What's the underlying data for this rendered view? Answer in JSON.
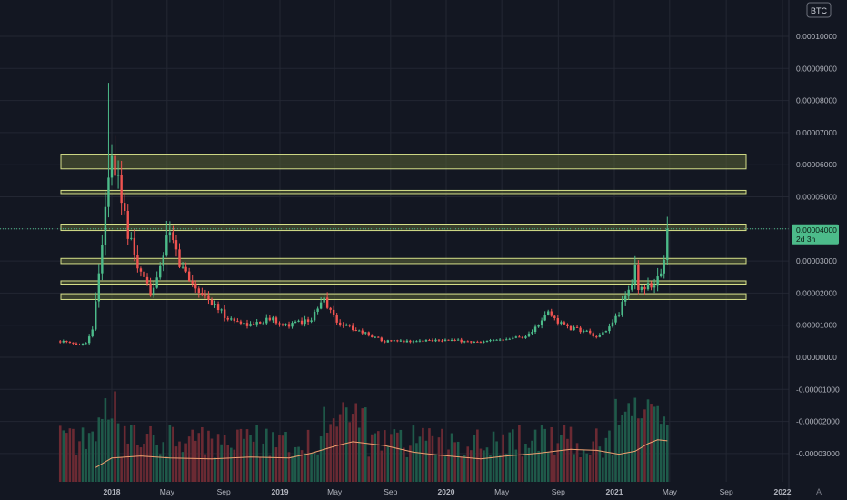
{
  "currency_badge": "BTC",
  "corner_glyph": "A",
  "colors": {
    "background": "#131722",
    "grid": "#232733",
    "axis_text": "#b2b5be",
    "up": "#26a69a",
    "up_body": "#4cbb8a",
    "down": "#ef5350",
    "vol_up": "#1f5a4a",
    "vol_down": "#6b2a33",
    "zone_stroke": "#d6e08a",
    "zone_fill": "#5a6234",
    "ma_line": "#f0a070",
    "price_label": "#4cbb8a"
  },
  "price_tag": {
    "value": "0.00004000",
    "countdown": "2d 3h"
  },
  "chart_data": {
    "type": "candlestick",
    "title": "",
    "x_ticks": [
      "2018",
      "May",
      "Sep",
      "2019",
      "May",
      "Sep",
      "2020",
      "May",
      "Sep",
      "2021",
      "May",
      "Sep",
      "2022"
    ],
    "y_ticks": [
      "0.00010000",
      "0.00009000",
      "0.00008000",
      "0.00007000",
      "0.00006000",
      "0.00005000",
      "0.00004000",
      "0.00003000",
      "0.00002000",
      "0.00001000",
      "0.00000000",
      "-0.00001000",
      "-0.00002000",
      "-0.00003000"
    ],
    "y_range": [
      -3.85e-05,
      0.000102
    ],
    "x_range": [
      "2017-09-11",
      "2022-02-14"
    ],
    "interval": "1W",
    "last_price": 4e-05,
    "resistance_zones": [
      {
        "low": 5.87e-05,
        "high": 6.33e-05
      },
      {
        "low": 5.1e-05,
        "high": 5.2e-05
      },
      {
        "low": 3.95e-05,
        "high": 4.15e-05
      },
      {
        "low": 2.92e-05,
        "high": 3.08e-05
      },
      {
        "low": 2.28e-05,
        "high": 2.38e-05
      },
      {
        "low": 1.8e-05,
        "high": 1.98e-05
      }
    ],
    "close_anchors": [
      [
        "2017-09-11",
        5e-06
      ],
      [
        "2017-10-16",
        4e-06
      ],
      [
        "2017-11-06",
        4.5e-06
      ],
      [
        "2017-11-20",
        9e-06
      ],
      [
        "2017-12-04",
        2.6e-05
      ],
      [
        "2017-12-18",
        4.8e-05
      ],
      [
        "2018-01-01",
        6e-05
      ],
      [
        "2018-01-15",
        5.6e-05
      ],
      [
        "2018-02-05",
        3.8e-05
      ],
      [
        "2018-03-05",
        2.5e-05
      ],
      [
        "2018-03-26",
        2e-05
      ],
      [
        "2018-04-16",
        2.9e-05
      ],
      [
        "2018-05-07",
        3.9e-05
      ],
      [
        "2018-05-28",
        2.9e-05
      ],
      [
        "2018-07-02",
        2.2e-05
      ],
      [
        "2018-08-06",
        1.7e-05
      ],
      [
        "2018-09-10",
        1.2e-05
      ],
      [
        "2018-10-29",
        1e-05
      ],
      [
        "2018-12-10",
        1.2e-05
      ],
      [
        "2019-01-21",
        1e-05
      ],
      [
        "2019-03-11",
        1.2e-05
      ],
      [
        "2019-04-08",
        1.8e-05
      ],
      [
        "2019-05-06",
        1.1e-05
      ],
      [
        "2019-06-10",
        9e-06
      ],
      [
        "2019-07-15",
        7e-06
      ],
      [
        "2019-08-19",
        5e-06
      ],
      [
        "2019-10-21",
        5e-06
      ],
      [
        "2019-12-16",
        5.5e-06
      ],
      [
        "2020-02-10",
        5e-06
      ],
      [
        "2020-03-16",
        4.5e-06
      ],
      [
        "2020-05-11",
        6e-06
      ],
      [
        "2020-06-22",
        6.5e-06
      ],
      [
        "2020-07-20",
        1e-05
      ],
      [
        "2020-08-10",
        1.4e-05
      ],
      [
        "2020-08-31",
        1.1e-05
      ],
      [
        "2020-09-28",
        9e-06
      ],
      [
        "2020-11-02",
        8e-06
      ],
      [
        "2020-11-23",
        6e-06
      ],
      [
        "2020-12-14",
        8e-06
      ],
      [
        "2021-01-11",
        1.4e-05
      ],
      [
        "2021-02-01",
        2.1e-05
      ],
      [
        "2021-02-15",
        2.7e-05
      ],
      [
        "2021-02-22",
        2.2e-05
      ],
      [
        "2021-03-15",
        2.2e-05
      ],
      [
        "2021-04-05",
        2.4e-05
      ],
      [
        "2021-04-19",
        3e-05
      ],
      [
        "2021-04-26",
        4e-05
      ]
    ],
    "volume_ma": [
      [
        "2017-11-27",
        0.15
      ],
      [
        "2018-01-01",
        0.25
      ],
      [
        "2018-03-05",
        0.27
      ],
      [
        "2018-05-07",
        0.25
      ],
      [
        "2018-08-06",
        0.24
      ],
      [
        "2018-10-29",
        0.26
      ],
      [
        "2019-01-21",
        0.25
      ],
      [
        "2019-03-11",
        0.3
      ],
      [
        "2019-05-06",
        0.38
      ],
      [
        "2019-06-10",
        0.42
      ],
      [
        "2019-08-19",
        0.38
      ],
      [
        "2019-10-21",
        0.31
      ],
      [
        "2019-12-16",
        0.28
      ],
      [
        "2020-03-16",
        0.24
      ],
      [
        "2020-05-11",
        0.27
      ],
      [
        "2020-07-20",
        0.3
      ],
      [
        "2020-09-28",
        0.34
      ],
      [
        "2020-11-23",
        0.33
      ],
      [
        "2021-01-11",
        0.29
      ],
      [
        "2021-02-15",
        0.32
      ],
      [
        "2021-03-15",
        0.4
      ],
      [
        "2021-04-05",
        0.44
      ],
      [
        "2021-04-26",
        0.43
      ]
    ]
  }
}
